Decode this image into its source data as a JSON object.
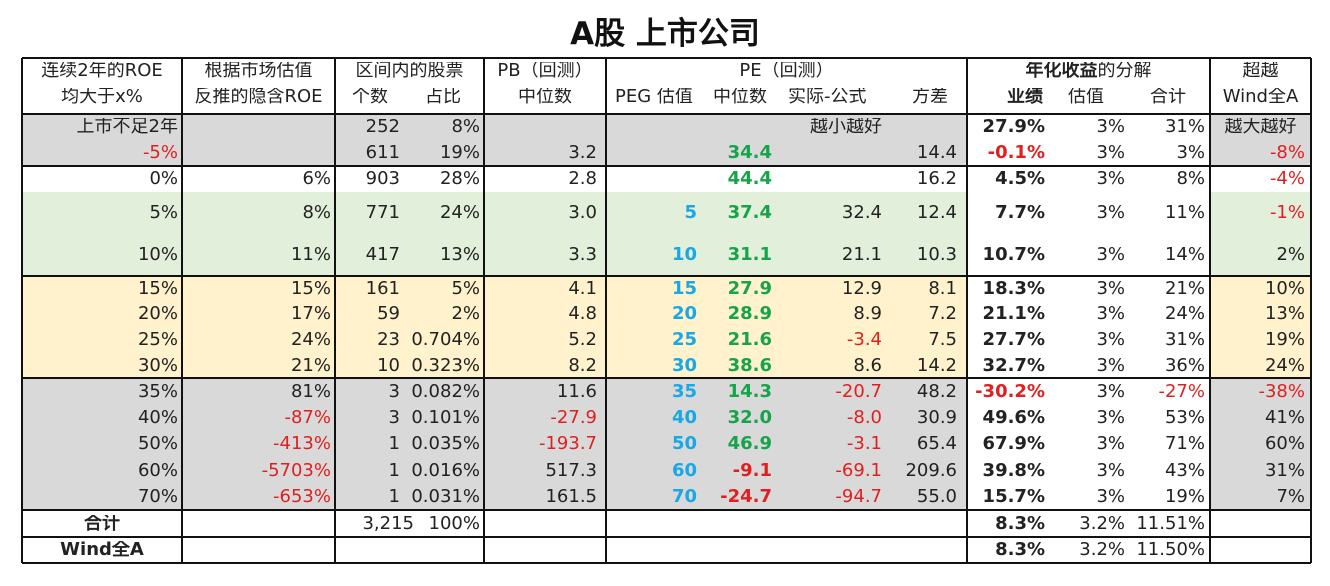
{
  "title": "A股 上市公司",
  "headers": {
    "roe": [
      "连续2年的ROE",
      "均大于x%"
    ],
    "implied": [
      "根据市场估值",
      "反推的隐含ROE"
    ],
    "range_title": "区间内的股票",
    "range_count": "个数",
    "range_share": "占比",
    "pb": [
      "PB（回测）",
      "中位数"
    ],
    "pe_title": "PE（回测）",
    "peg": "PEG 估值",
    "pe_median": "中位数",
    "pe_diff": "实际-公式",
    "pe_var": "方差",
    "annual_pre": "年化",
    "annual_bold": "收益",
    "annual_post": "的分解",
    "perf": "业绩",
    "val": "估值",
    "sum": "合计",
    "excess": [
      "超越",
      "Wind全A"
    ]
  },
  "notes": {
    "pe_note": "越小越好",
    "excess_note": "越大越好"
  },
  "colors": {
    "gray": "#d9d9d9",
    "green": "#e2efda",
    "yellow": "#fff2cc",
    "red": "#e02020",
    "greenText": "#16a34a",
    "blueText": "#1aa7e6"
  },
  "rows": [
    {
      "roe": "上市不足2年",
      "implied": "",
      "count": "252",
      "share": "8%",
      "pb": "",
      "peg": "",
      "pe": "",
      "diff": "",
      "var": "",
      "perf": "27.9%",
      "val": "3%",
      "sum": "31%",
      "excess": "越大越好"
    },
    {
      "roe": "-5%",
      "implied": "",
      "count": "611",
      "share": "19%",
      "pb": "3.2",
      "peg": "",
      "pe": "34.4",
      "diff": "",
      "var": "14.4",
      "perf": "-0.1%",
      "val": "3%",
      "sum": "3%",
      "excess": "-8%"
    },
    {
      "roe": "0%",
      "implied": "6%",
      "count": "903",
      "share": "28%",
      "pb": "2.8",
      "peg": "",
      "pe": "44.4",
      "diff": "",
      "var": "16.2",
      "perf": "4.5%",
      "val": "3%",
      "sum": "8%",
      "excess": "-4%"
    },
    {
      "roe": "5%",
      "implied": "8%",
      "count": "771",
      "share": "24%",
      "pb": "3.0",
      "peg": "5",
      "pe": "37.4",
      "diff": "32.4",
      "var": "12.4",
      "perf": "7.7%",
      "val": "3%",
      "sum": "11%",
      "excess": "-1%"
    },
    {
      "roe": "10%",
      "implied": "11%",
      "count": "417",
      "share": "13%",
      "pb": "3.3",
      "peg": "10",
      "pe": "31.1",
      "diff": "21.1",
      "var": "10.3",
      "perf": "10.7%",
      "val": "3%",
      "sum": "14%",
      "excess": "2%"
    },
    {
      "roe": "15%",
      "implied": "15%",
      "count": "161",
      "share": "5%",
      "pb": "4.1",
      "peg": "15",
      "pe": "27.9",
      "diff": "12.9",
      "var": "8.1",
      "perf": "18.3%",
      "val": "3%",
      "sum": "21%",
      "excess": "10%"
    },
    {
      "roe": "20%",
      "implied": "17%",
      "count": "59",
      "share": "2%",
      "pb": "4.8",
      "peg": "20",
      "pe": "28.9",
      "diff": "8.9",
      "var": "7.2",
      "perf": "21.1%",
      "val": "3%",
      "sum": "24%",
      "excess": "13%"
    },
    {
      "roe": "25%",
      "implied": "24%",
      "count": "23",
      "share": "0.704%",
      "pb": "5.2",
      "peg": "25",
      "pe": "21.6",
      "diff": "-3.4",
      "var": "7.5",
      "perf": "27.7%",
      "val": "3%",
      "sum": "31%",
      "excess": "19%"
    },
    {
      "roe": "30%",
      "implied": "21%",
      "count": "10",
      "share": "0.323%",
      "pb": "8.2",
      "peg": "30",
      "pe": "38.6",
      "diff": "8.6",
      "var": "14.2",
      "perf": "32.7%",
      "val": "3%",
      "sum": "36%",
      "excess": "24%"
    },
    {
      "roe": "35%",
      "implied": "81%",
      "count": "3",
      "share": "0.082%",
      "pb": "11.6",
      "peg": "35",
      "pe": "14.3",
      "diff": "-20.7",
      "var": "48.2",
      "perf": "-30.2%",
      "val": "3%",
      "sum": "-27%",
      "excess": "-38%"
    },
    {
      "roe": "40%",
      "implied": "-87%",
      "count": "3",
      "share": "0.101%",
      "pb": "-27.9",
      "peg": "40",
      "pe": "32.0",
      "diff": "-8.0",
      "var": "30.9",
      "perf": "49.6%",
      "val": "3%",
      "sum": "53%",
      "excess": "41%"
    },
    {
      "roe": "50%",
      "implied": "-413%",
      "count": "1",
      "share": "0.035%",
      "pb": "-193.7",
      "peg": "50",
      "pe": "46.9",
      "diff": "-3.1",
      "var": "65.4",
      "perf": "67.9%",
      "val": "3%",
      "sum": "71%",
      "excess": "60%"
    },
    {
      "roe": "60%",
      "implied": "-5703%",
      "count": "1",
      "share": "0.016%",
      "pb": "517.3",
      "peg": "60",
      "pe": "-9.1",
      "diff": "-69.1",
      "var": "209.6",
      "perf": "39.8%",
      "val": "3%",
      "sum": "43%",
      "excess": "31%"
    },
    {
      "roe": "70%",
      "implied": "-653%",
      "count": "1",
      "share": "0.031%",
      "pb": "161.5",
      "peg": "70",
      "pe": "-24.7",
      "diff": "-94.7",
      "var": "55.0",
      "perf": "15.7%",
      "val": "3%",
      "sum": "19%",
      "excess": "7%"
    }
  ],
  "total": {
    "label": "合计",
    "count": "3,215",
    "share": "100%",
    "perf": "8.3%",
    "val": "3.2%",
    "sum": "11.51%"
  },
  "wind": {
    "label": "Wind全A",
    "perf": "8.3%",
    "val": "3.2%",
    "sum": "11.50%"
  }
}
